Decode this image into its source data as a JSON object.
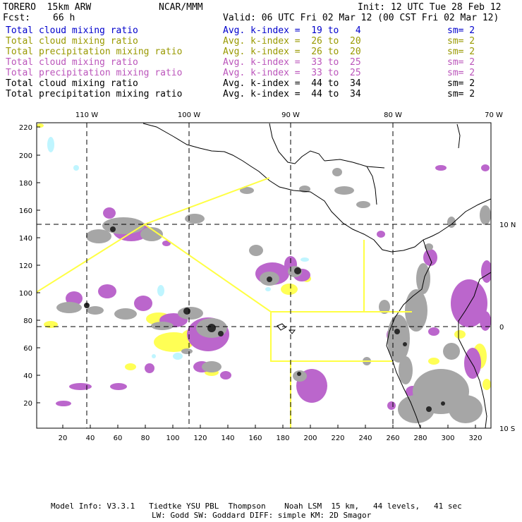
{
  "header": {
    "model": "TORERO  15km ARW",
    "org": "NCAR/MMM",
    "init": "Init: 12 UTC Tue 28 Feb 12",
    "fcst_label": "Fcst:",
    "fcst_value": "66 h",
    "valid": "Valid: 06 UTC Fri 02 Mar 12 (00 CST Fri 02 Mar 12)"
  },
  "legend": [
    {
      "field": "Total cloud mixing ratio",
      "stat": "Avg. k-index =  19 to   4",
      "sm": "sm= 2",
      "color": "#0000cc"
    },
    {
      "field": "Total cloud mixing ratio",
      "stat": "Avg. k-index =  26 to  20",
      "sm": "sm= 2",
      "color": "#999900"
    },
    {
      "field": "Total precipitation mixing ratio",
      "stat": "Avg. k-index =  26 to  20",
      "sm": "sm= 2",
      "color": "#999900"
    },
    {
      "field": "Total cloud mixing ratio",
      "stat": "Avg. k-index =  33 to  25",
      "sm": "sm= 2",
      "color": "#bb55bb"
    },
    {
      "field": "Total precipitation mixing ratio",
      "stat": "Avg. k-index =  33 to  25",
      "sm": "sm= 2",
      "color": "#bb55bb"
    },
    {
      "field": "Total cloud mixing ratio",
      "stat": "Avg. k-index =  44 to  34",
      "sm": "sm= 2",
      "color": "#000000"
    },
    {
      "field": "Total precipitation mixing ratio",
      "stat": "Avg. k-index =  44 to  34",
      "sm": "sm= 2",
      "color": "#000000"
    }
  ],
  "axes": {
    "top_lon": [
      "110 W",
      "100 W",
      "90 W",
      "80 W",
      "70 W"
    ],
    "right_lat": [
      "10 N",
      "0",
      "10 S"
    ],
    "left_y": [
      "220",
      "200",
      "180",
      "160",
      "140",
      "120",
      "100",
      "80",
      "60",
      "40",
      "20"
    ],
    "bottom_x": [
      "20",
      "40",
      "60",
      "80",
      "100",
      "120",
      "140",
      "160",
      "180",
      "200",
      "220",
      "240",
      "260",
      "280",
      "300",
      "320"
    ]
  },
  "colors": {
    "cyan": "#bff5ff",
    "yellow": "#ffff55",
    "magenta": "#bb66cc",
    "gray": "#a6a6a6",
    "dark": "#2a2a2a",
    "boundary": "#ffff44"
  },
  "footer": {
    "line1": "Model Info: V3.3.1   Tiedtke YSU PBL  Thompson    Noah LSM  15 km,   44 levels,   41 sec",
    "line2": "LW: Godd SW: Goddard DIFF: simple KM: 2D Smagor"
  }
}
